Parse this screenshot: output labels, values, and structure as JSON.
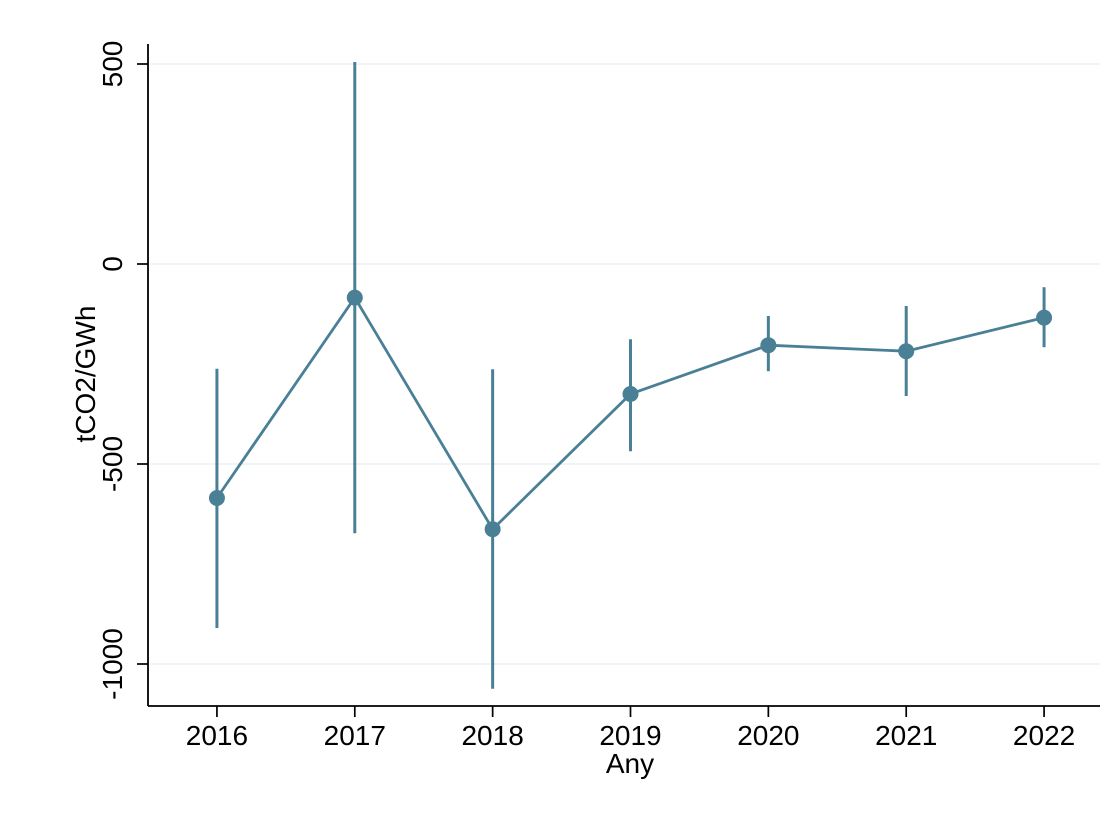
{
  "chart_data": {
    "type": "line",
    "title": "",
    "xlabel": "Any",
    "ylabel": "tCO2/GWh",
    "categories": [
      "2016",
      "2017",
      "2018",
      "2019",
      "2020",
      "2021",
      "2022"
    ],
    "series": [
      {
        "name": "Any",
        "values": [
          -585,
          -84,
          -663,
          -325,
          -203,
          -218,
          -134
        ],
        "ci_low": [
          -910,
          -673,
          -1062,
          -468,
          -268,
          -330,
          -208
        ],
        "ci_high": [
          -262,
          505,
          -263,
          -188,
          -130,
          -105,
          -58
        ]
      }
    ],
    "yticks": [
      500,
      0,
      -500,
      -1000
    ],
    "ylim": [
      -1105,
      550
    ],
    "grid": true,
    "legend": false,
    "marker": "circle",
    "colors": {
      "series": "#4a8096",
      "grid": "#eaf0f4",
      "axis": "#000000",
      "background": "#ffffff"
    }
  }
}
